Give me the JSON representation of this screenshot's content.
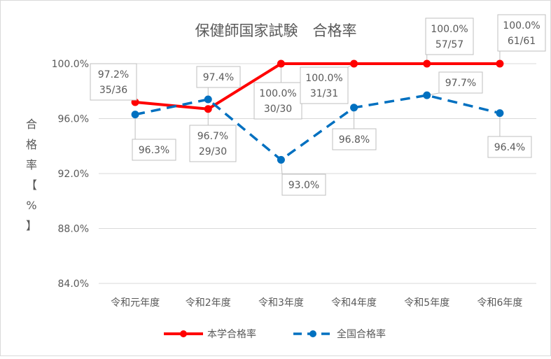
{
  "chart_data": {
    "type": "line",
    "title": "保健師国家試験　合格率",
    "ylabel": "合格率【%】",
    "ylim": [
      84.0,
      100.0
    ],
    "yticks": [
      "100.0%",
      "96.0%",
      "92.0%",
      "88.0%",
      "84.0%"
    ],
    "ytick_values": [
      100,
      96,
      92,
      88,
      84
    ],
    "categories": [
      "令和元年度",
      "令和2年度",
      "令和3年度",
      "令和4年度",
      "令和5年度",
      "令和6年度"
    ],
    "grid": true,
    "legend_position": "bottom",
    "series": [
      {
        "name": "本学合格率",
        "color": "#ff0000",
        "style": "solid",
        "values": [
          97.2,
          96.7,
          100.0,
          100.0,
          100.0,
          100.0
        ],
        "labels": [
          [
            "97.2%",
            "35/36"
          ],
          [
            "96.7%",
            "29/30"
          ],
          [
            "100.0%",
            "30/30"
          ],
          [
            "100.0%",
            "31/31"
          ],
          [
            "100.0%",
            "57/57"
          ],
          [
            "100.0%",
            "61/61"
          ]
        ]
      },
      {
        "name": "全国合格率",
        "color": "#0070c0",
        "style": "dashed",
        "values": [
          96.3,
          97.4,
          93.0,
          96.8,
          97.7,
          96.4
        ],
        "labels": [
          [
            "96.3%"
          ],
          [
            "97.4%"
          ],
          [
            "93.0%"
          ],
          [
            "96.8%"
          ],
          [
            "97.7%"
          ],
          [
            "96.4%"
          ]
        ]
      }
    ]
  }
}
